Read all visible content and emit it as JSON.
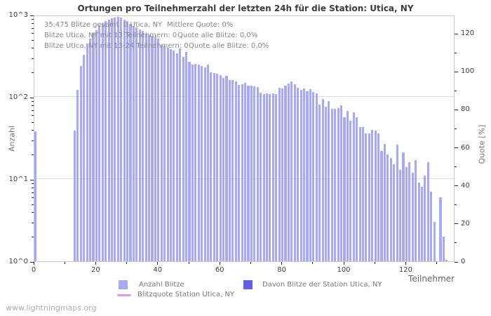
{
  "title": "Ortungen pro Teilnehmerzahl der letzten 24h für die Station: Utica, NY",
  "watermark": "www.lightningmaps.org",
  "annotations": {
    "line1_left": "35.475 Blitze gesamt",
    "line1_mid": "0 Utica, NY",
    "line1_right": "Mittlere Quote: 0%",
    "line2_left": "Blitze Utica, NY mit 13 Teilnehmern: 0",
    "line2_right": "Quote alle Blitze: 0,0%",
    "line3_left": "Blitze Utica, NY mit 13-24 Teilnehmern: 0",
    "line3_right": "Quote alle Blitze: 0,0%"
  },
  "legend": {
    "items": [
      {
        "label": "Anzahl Blitze",
        "color": "#a9a9f1",
        "type": "square"
      },
      {
        "label": "Davon Blitze der Station Utica, NY",
        "color": "#6161e8",
        "type": "square"
      },
      {
        "label": "Blitzquote Station Utica, NY",
        "color": "#de9ce8",
        "type": "line"
      }
    ]
  },
  "chart_data": {
    "type": "bar",
    "title": "Ortungen pro Teilnehmerzahl der letzten 24h für die Station: Utica, NY",
    "xlabel": "Teilnehmer",
    "ylabel_left": "Anzahl",
    "ylabel_right": "Quote [%]",
    "y_scale_left": "log",
    "ylim_left": [
      1,
      1000
    ],
    "ylim_right": [
      0,
      129.6
    ],
    "grid": "horizontal-decades",
    "legend_position": "bottom",
    "left_ticks": [
      "10^0",
      "10^1",
      "10^2",
      "10^3"
    ],
    "x_ticks": [
      0,
      20,
      40,
      60,
      80,
      100,
      120
    ],
    "x_minor_step": 10,
    "x_max_tick": 130,
    "right_ticks": [
      0,
      20,
      40,
      60,
      80,
      100,
      120
    ],
    "bar_color": "#a9a9f1",
    "station_bar_color": "#6161e8",
    "quote_line_color": "#de9ce8",
    "x_start": 0,
    "series": [
      {
        "name": "Anzahl Blitze",
        "values": [
          38,
          0,
          0,
          0,
          0,
          0,
          0,
          0,
          0,
          0,
          0,
          0,
          0,
          39,
          121,
          236,
          325,
          450,
          510,
          605,
          650,
          740,
          770,
          830,
          870,
          900,
          930,
          950,
          920,
          880,
          840,
          780,
          730,
          700,
          660,
          630,
          590,
          560,
          555,
          545,
          515,
          430,
          420,
          400,
          385,
          370,
          340,
          390,
          310,
          350,
          270,
          245,
          252,
          248,
          240,
          230,
          245,
          200,
          195,
          190,
          185,
          170,
          180,
          160,
          160,
          155,
          140,
          142,
          148,
          138,
          138,
          135,
          132,
          113,
          108,
          111,
          108,
          111,
          108,
          130,
          127,
          136,
          145,
          153,
          143,
          129,
          122,
          127,
          117,
          124,
          114,
          111,
          81,
          94,
          76,
          89,
          71,
          71,
          73,
          79,
          57,
          68,
          51,
          65,
          56,
          43,
          43,
          36,
          36,
          40,
          39,
          36,
          22,
          27,
          20,
          18,
          15,
          26,
          13,
          21,
          14,
          16,
          12,
          17,
          9,
          8,
          11,
          16,
          7,
          3,
          0,
          6,
          2,
          1
        ]
      },
      {
        "name": "Davon Blitze der Station Utica, NY",
        "constant_value": 0
      },
      {
        "name": "Blitzquote Station Utica, NY",
        "type": "line",
        "constant_value_percent": 0
      }
    ]
  }
}
